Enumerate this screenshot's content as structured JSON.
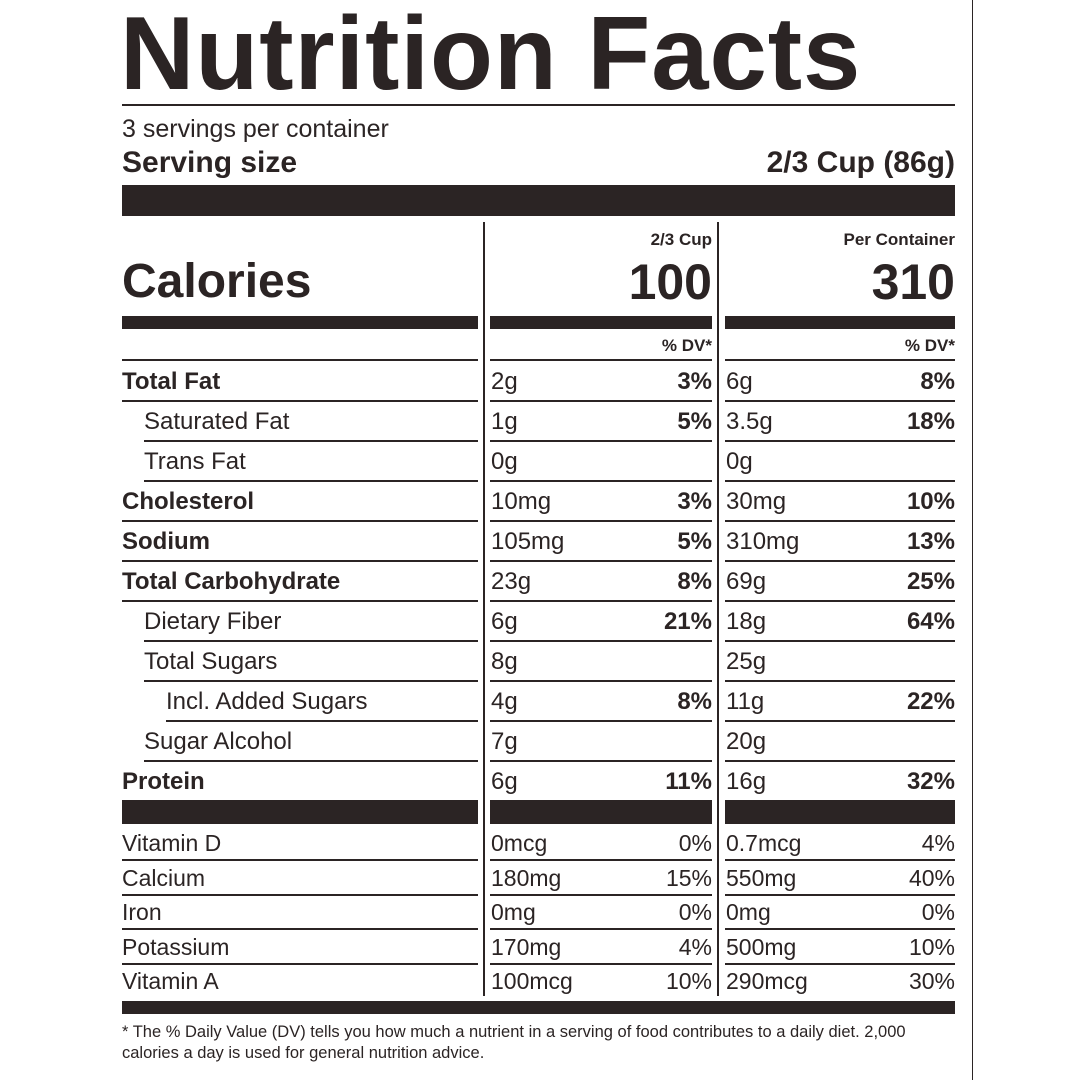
{
  "title": "Nutrition Facts",
  "servings_per_container": "3 servings per container",
  "serving_size": {
    "label": "Serving size",
    "value": "2/3 Cup (86g)"
  },
  "calories": {
    "label": "Calories",
    "col1_header": "2/3 Cup",
    "col2_header": "Per Container",
    "col1_value": "100",
    "col2_value": "310"
  },
  "dv_header": "% DV*",
  "nutrients": [
    {
      "name": "Total Fat",
      "bold": true,
      "indent": 0,
      "amt1": "2g",
      "pct1": "3%",
      "amt2": "6g",
      "pct2": "8%"
    },
    {
      "name": "Saturated Fat",
      "bold": false,
      "indent": 1,
      "amt1": "1g",
      "pct1": "5%",
      "amt2": "3.5g",
      "pct2": "18%"
    },
    {
      "name": "Trans Fat",
      "bold": false,
      "indent": 1,
      "amt1": "0g",
      "pct1": "",
      "amt2": "0g",
      "pct2": ""
    },
    {
      "name": "Cholesterol",
      "bold": true,
      "indent": 0,
      "amt1": "10mg",
      "pct1": "3%",
      "amt2": "30mg",
      "pct2": "10%"
    },
    {
      "name": "Sodium",
      "bold": true,
      "indent": 0,
      "amt1": "105mg",
      "pct1": "5%",
      "amt2": "310mg",
      "pct2": "13%"
    },
    {
      "name": "Total Carbohydrate",
      "bold": true,
      "indent": 0,
      "amt1": "23g",
      "pct1": "8%",
      "amt2": "69g",
      "pct2": "25%"
    },
    {
      "name": "Dietary Fiber",
      "bold": false,
      "indent": 1,
      "amt1": "6g",
      "pct1": "21%",
      "amt2": "18g",
      "pct2": "64%"
    },
    {
      "name": "Total Sugars",
      "bold": false,
      "indent": 1,
      "amt1": "8g",
      "pct1": "",
      "amt2": "25g",
      "pct2": ""
    },
    {
      "name": "Incl. Added Sugars",
      "bold": false,
      "indent": 2,
      "amt1": "4g",
      "pct1": "8%",
      "amt2": "11g",
      "pct2": "22%"
    },
    {
      "name": "Sugar Alcohol",
      "bold": false,
      "indent": 1,
      "amt1": "7g",
      "pct1": "",
      "amt2": "20g",
      "pct2": ""
    },
    {
      "name": "Protein",
      "bold": true,
      "indent": 0,
      "amt1": "6g",
      "pct1": "11%",
      "amt2": "16g",
      "pct2": "32%"
    }
  ],
  "vitamins": [
    {
      "name": "Vitamin D",
      "amt1": "0mcg",
      "pct1": "0%",
      "amt2": "0.7mcg",
      "pct2": "4%"
    },
    {
      "name": "Calcium",
      "amt1": "180mg",
      "pct1": "15%",
      "amt2": "550mg",
      "pct2": "40%"
    },
    {
      "name": "Iron",
      "amt1": "0mg",
      "pct1": "0%",
      "amt2": "0mg",
      "pct2": "0%"
    },
    {
      "name": "Potassium",
      "amt1": "170mg",
      "pct1": "4%",
      "amt2": "500mg",
      "pct2": "10%"
    },
    {
      "name": "Vitamin A",
      "amt1": "100mcg",
      "pct1": "10%",
      "amt2": "290mcg",
      "pct2": "30%"
    }
  ],
  "footnote": "* The % Daily Value (DV) tells you how much a nutrient in a serving of food contributes to a daily diet. 2,000 calories a day is used for general nutrition advice.",
  "colors": {
    "ink": "#2b2424",
    "background": "#ffffff"
  }
}
